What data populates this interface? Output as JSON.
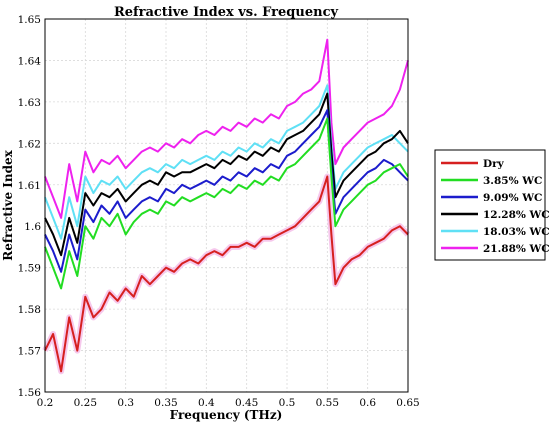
{
  "chart_data": {
    "type": "line",
    "title": "Refractive Index vs. Frequency",
    "xlabel": "Frequency (THz)",
    "ylabel": "Refractive Index",
    "xlim": [
      0.2,
      0.65
    ],
    "ylim": [
      1.56,
      1.65
    ],
    "xticks": [
      "0.2",
      "0.25",
      "0.3",
      "0.35",
      "0.4",
      "0.45",
      "0.5",
      "0.55",
      "0.6",
      "0.65"
    ],
    "yticks": [
      "1.56",
      "1.57",
      "1.58",
      "1.59",
      "1.6",
      "1.61",
      "1.62",
      "1.63",
      "1.64",
      "1.65"
    ],
    "grid": true,
    "legend_position": "right",
    "x": [
      0.2,
      0.21,
      0.22,
      0.23,
      0.24,
      0.25,
      0.26,
      0.27,
      0.28,
      0.29,
      0.3,
      0.31,
      0.32,
      0.33,
      0.34,
      0.35,
      0.36,
      0.37,
      0.38,
      0.39,
      0.4,
      0.41,
      0.42,
      0.43,
      0.44,
      0.45,
      0.46,
      0.47,
      0.48,
      0.49,
      0.5,
      0.51,
      0.52,
      0.53,
      0.54,
      0.55,
      0.555,
      0.56,
      0.57,
      0.58,
      0.59,
      0.6,
      0.61,
      0.62,
      0.63,
      0.64,
      0.65
    ],
    "series": [
      {
        "name": "Dry",
        "color": "#d62020",
        "values": [
          1.57,
          1.574,
          1.565,
          1.578,
          1.57,
          1.583,
          1.578,
          1.58,
          1.584,
          1.582,
          1.585,
          1.583,
          1.588,
          1.586,
          1.588,
          1.59,
          1.589,
          1.591,
          1.592,
          1.591,
          1.593,
          1.594,
          1.593,
          1.595,
          1.595,
          1.596,
          1.595,
          1.597,
          1.597,
          1.598,
          1.599,
          1.6,
          1.602,
          1.604,
          1.606,
          1.612,
          1.598,
          1.586,
          1.59,
          1.592,
          1.593,
          1.595,
          1.596,
          1.597,
          1.599,
          1.6,
          1.598
        ]
      },
      {
        "name": "3.85% WC",
        "color": "#22dd22",
        "values": [
          1.595,
          1.59,
          1.585,
          1.594,
          1.588,
          1.6,
          1.597,
          1.602,
          1.6,
          1.603,
          1.598,
          1.601,
          1.603,
          1.604,
          1.603,
          1.606,
          1.605,
          1.607,
          1.606,
          1.607,
          1.608,
          1.607,
          1.609,
          1.608,
          1.61,
          1.609,
          1.611,
          1.61,
          1.612,
          1.611,
          1.614,
          1.615,
          1.617,
          1.619,
          1.621,
          1.626,
          1.612,
          1.6,
          1.604,
          1.606,
          1.608,
          1.61,
          1.611,
          1.613,
          1.614,
          1.615,
          1.612
        ]
      },
      {
        "name": "9.09% WC",
        "color": "#1c1ccc",
        "values": [
          1.598,
          1.594,
          1.589,
          1.598,
          1.592,
          1.604,
          1.601,
          1.605,
          1.603,
          1.606,
          1.602,
          1.604,
          1.606,
          1.607,
          1.606,
          1.609,
          1.608,
          1.61,
          1.609,
          1.61,
          1.611,
          1.61,
          1.612,
          1.611,
          1.613,
          1.612,
          1.614,
          1.613,
          1.615,
          1.614,
          1.617,
          1.618,
          1.62,
          1.622,
          1.624,
          1.628,
          1.614,
          1.603,
          1.607,
          1.609,
          1.611,
          1.613,
          1.614,
          1.616,
          1.615,
          1.613,
          1.611
        ]
      },
      {
        "name": "12.28% WC",
        "color": "#000000",
        "values": [
          1.602,
          1.598,
          1.593,
          1.602,
          1.596,
          1.608,
          1.605,
          1.608,
          1.607,
          1.609,
          1.606,
          1.608,
          1.61,
          1.611,
          1.61,
          1.613,
          1.612,
          1.613,
          1.613,
          1.614,
          1.615,
          1.614,
          1.616,
          1.615,
          1.617,
          1.616,
          1.618,
          1.617,
          1.619,
          1.618,
          1.621,
          1.622,
          1.623,
          1.625,
          1.627,
          1.632,
          1.618,
          1.607,
          1.611,
          1.613,
          1.615,
          1.617,
          1.618,
          1.62,
          1.621,
          1.623,
          1.62
        ]
      },
      {
        "name": "18.03% WC",
        "color": "#5fe0f5",
        "values": [
          1.607,
          1.602,
          1.597,
          1.607,
          1.6,
          1.612,
          1.608,
          1.611,
          1.61,
          1.612,
          1.609,
          1.611,
          1.613,
          1.614,
          1.613,
          1.615,
          1.614,
          1.616,
          1.615,
          1.616,
          1.617,
          1.616,
          1.618,
          1.617,
          1.619,
          1.618,
          1.62,
          1.619,
          1.621,
          1.62,
          1.623,
          1.624,
          1.625,
          1.627,
          1.629,
          1.634,
          1.62,
          1.609,
          1.613,
          1.615,
          1.617,
          1.619,
          1.62,
          1.621,
          1.622,
          1.62,
          1.618
        ]
      },
      {
        "name": "21.88% WC",
        "color": "#ee22ee",
        "values": [
          1.612,
          1.607,
          1.602,
          1.615,
          1.606,
          1.618,
          1.613,
          1.616,
          1.615,
          1.617,
          1.614,
          1.616,
          1.618,
          1.619,
          1.618,
          1.62,
          1.619,
          1.621,
          1.62,
          1.622,
          1.623,
          1.622,
          1.624,
          1.623,
          1.625,
          1.624,
          1.626,
          1.625,
          1.627,
          1.626,
          1.629,
          1.63,
          1.632,
          1.633,
          1.635,
          1.645,
          1.625,
          1.615,
          1.619,
          1.621,
          1.623,
          1.625,
          1.626,
          1.627,
          1.629,
          1.633,
          1.64
        ]
      }
    ]
  }
}
